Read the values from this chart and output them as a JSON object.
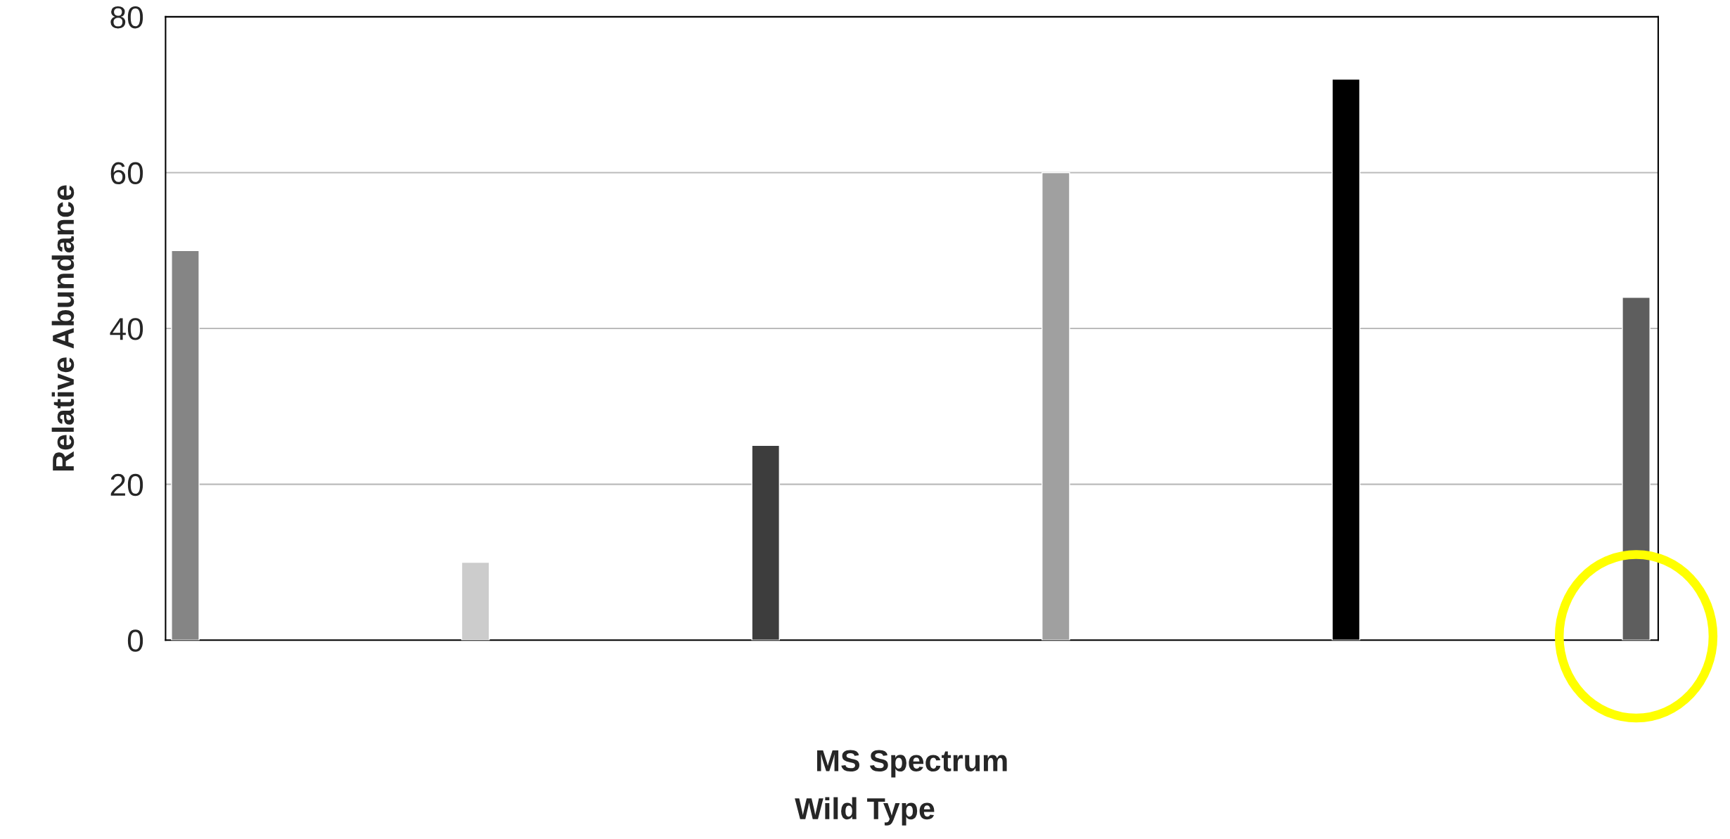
{
  "chart_data": {
    "type": "bar",
    "xlabel": "MS Spectrum",
    "ylabel": "Relative Abundance",
    "annotations": [
      "Wild Type"
    ],
    "categories": [
      null,
      null,
      null,
      null,
      null,
      null
    ],
    "values": [
      50,
      10,
      25,
      60,
      72,
      44
    ],
    "colors": [
      "#858585",
      "#cccccc",
      "#3d3d3d",
      "#a0a0a0",
      "#000000",
      "#5e5e5e"
    ],
    "ylim": [
      0,
      80
    ],
    "yticks": [
      0,
      20,
      40,
      60,
      80
    ],
    "grid": "y",
    "tick_labels": "y",
    "legend": false
  }
}
